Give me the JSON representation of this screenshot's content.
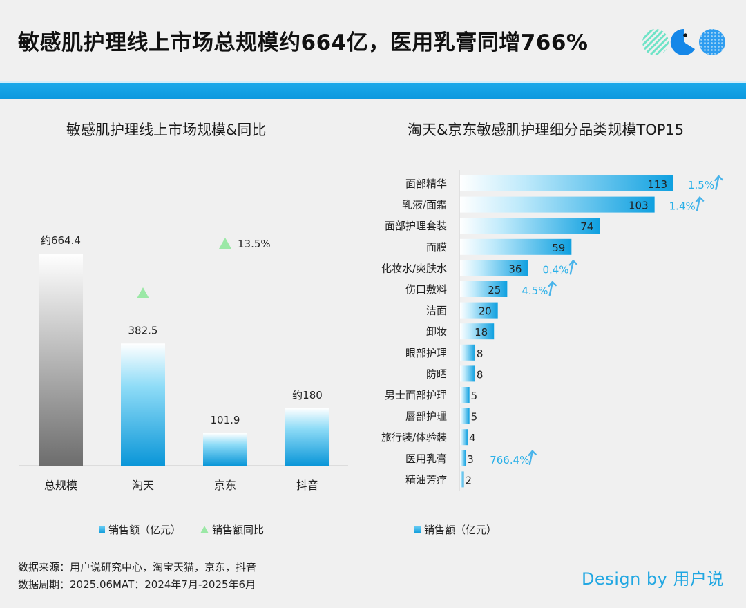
{
  "header": {
    "title": "敏感肌护理线上市场总规模约664亿，医用乳膏同增766%"
  },
  "colors": {
    "accent": "#1aa6e6",
    "growth_triangle": "#9be8a6",
    "growth_text": "#2ab0e8",
    "total_bar_top": "#ffffff",
    "total_bar_bottom": "#6d6d6d"
  },
  "chart_data": [
    {
      "type": "bar",
      "title": "敏感肌护理线上市场规模&同比",
      "categories": [
        "总规模",
        "淘天",
        "京东",
        "抖音"
      ],
      "values": [
        664.4,
        382.5,
        101.9,
        180
      ],
      "value_labels": [
        "约664.4",
        "382.5",
        "101.9",
        "约180"
      ],
      "growth_markers": [
        {
          "category": "淘天",
          "label": ""
        },
        {
          "category": "京东",
          "label": "13.5%"
        }
      ],
      "legend": {
        "bar": "销售额（亿元）",
        "marker": "销售额同比"
      },
      "ylim": [
        0,
        700
      ]
    },
    {
      "type": "bar",
      "orientation": "horizontal",
      "title": "淘天&京东敏感肌护理细分品类规模TOP15",
      "categories": [
        "面部精华",
        "乳液/面霜",
        "面部护理套装",
        "面膜",
        "化妆水/爽肤水",
        "伤口敷料",
        "洁面",
        "卸妆",
        "眼部护理",
        "防晒",
        "男士面部护理",
        "唇部护理",
        "旅行装/体验装",
        "医用乳膏",
        "精油芳疗"
      ],
      "values": [
        113,
        103,
        74,
        59,
        36,
        25,
        20,
        18,
        8,
        8,
        5,
        5,
        4,
        3,
        2
      ],
      "growth": [
        "1.5%",
        "1.4%",
        "",
        "",
        "0.4%",
        "4.5%",
        "",
        "",
        "",
        "",
        "",
        "",
        "",
        "766.4%",
        ""
      ],
      "legend": "销售额（亿元）",
      "xlim": [
        0,
        113
      ]
    }
  ],
  "footer": {
    "source": "数据来源：用户说研究中心，淘宝天猫，京东，抖音",
    "period": "数据周期：2025.06MAT：2024年7月-2025年6月",
    "brand": "Design by 用户说"
  }
}
